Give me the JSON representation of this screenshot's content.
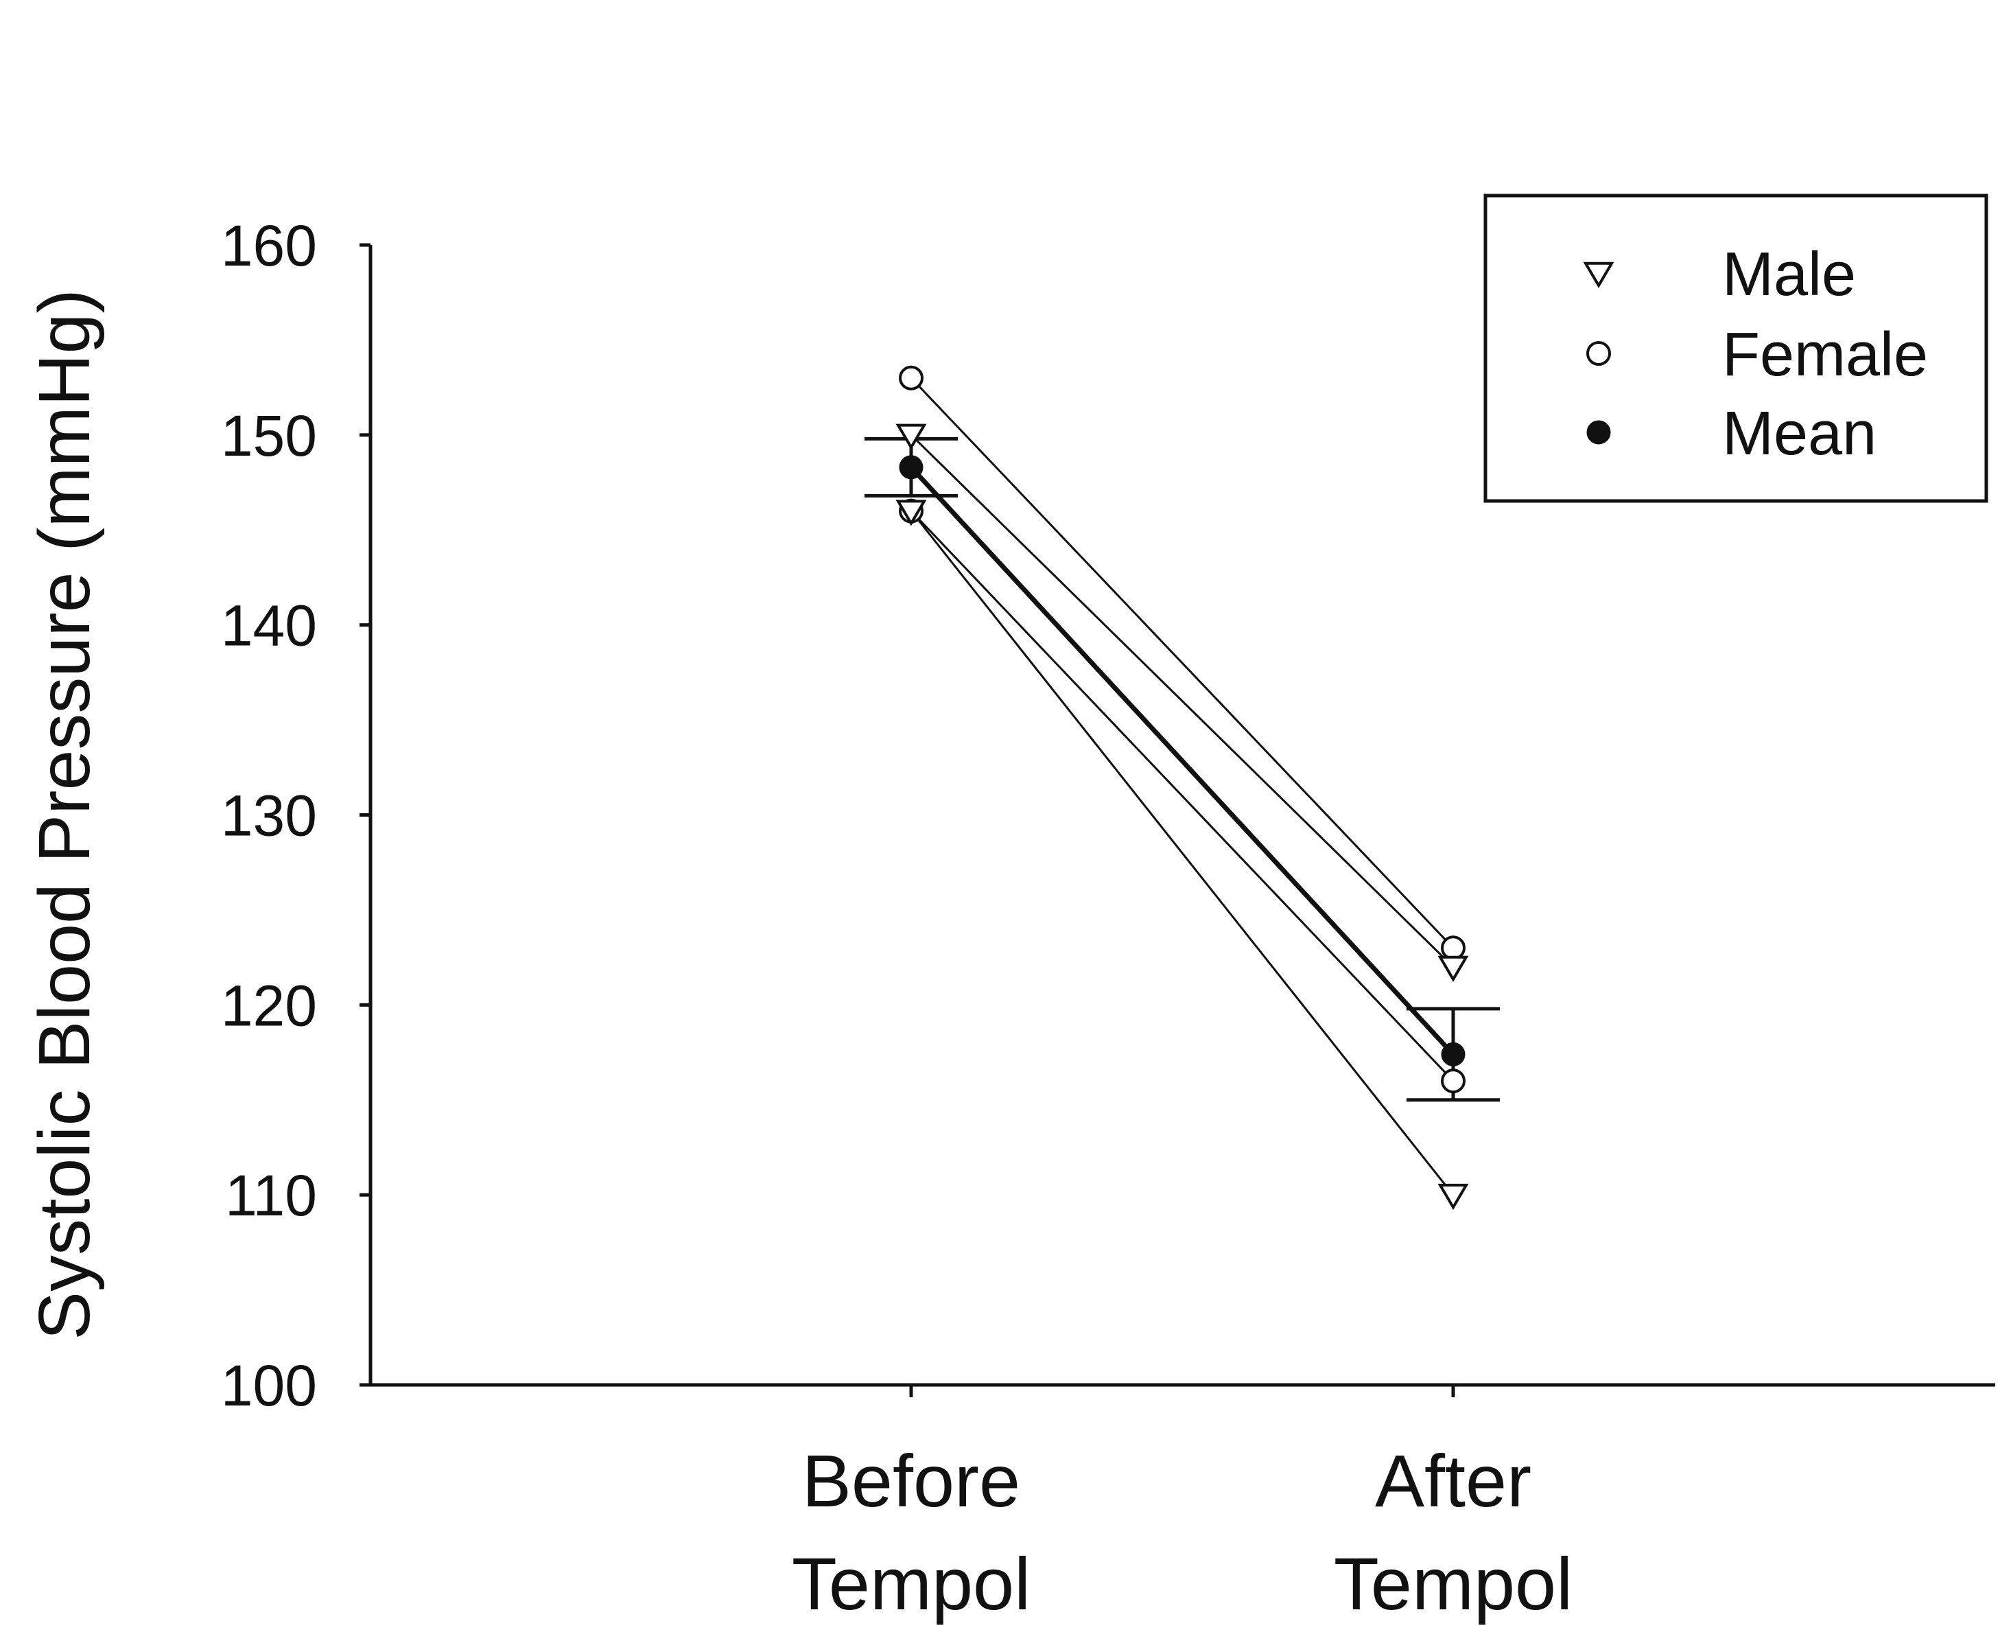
{
  "chart_data": {
    "type": "line",
    "title": "",
    "xlabel": "",
    "ylabel": "Systolic Blood Pressure (mmHg)",
    "ylim": [
      100,
      160
    ],
    "yticks": [
      100,
      110,
      120,
      130,
      140,
      150,
      160
    ],
    "grid": false,
    "legend_position": "top-right",
    "categories": [
      {
        "line1": "Before",
        "line2": "Tempol"
      },
      {
        "line1": "After",
        "line2": "Tempol"
      }
    ],
    "legend": [
      {
        "label": "Male",
        "marker": "triangle-down-open"
      },
      {
        "label": "Female",
        "marker": "circle-open"
      },
      {
        "label": "Mean",
        "marker": "circle-filled"
      }
    ],
    "series": [
      {
        "name": "Female",
        "marker": "circle-open",
        "values": [
          153,
          123
        ]
      },
      {
        "name": "Male",
        "marker": "triangle-down-open",
        "values": [
          150,
          122
        ]
      },
      {
        "name": "Female",
        "marker": "circle-open",
        "values": [
          146,
          116
        ]
      },
      {
        "name": "Male",
        "marker": "triangle-down-open",
        "values": [
          146,
          110
        ]
      },
      {
        "name": "Mean",
        "marker": "circle-filled",
        "values": [
          148.3,
          117.4
        ],
        "error": [
          1.5,
          2.4
        ]
      }
    ]
  }
}
